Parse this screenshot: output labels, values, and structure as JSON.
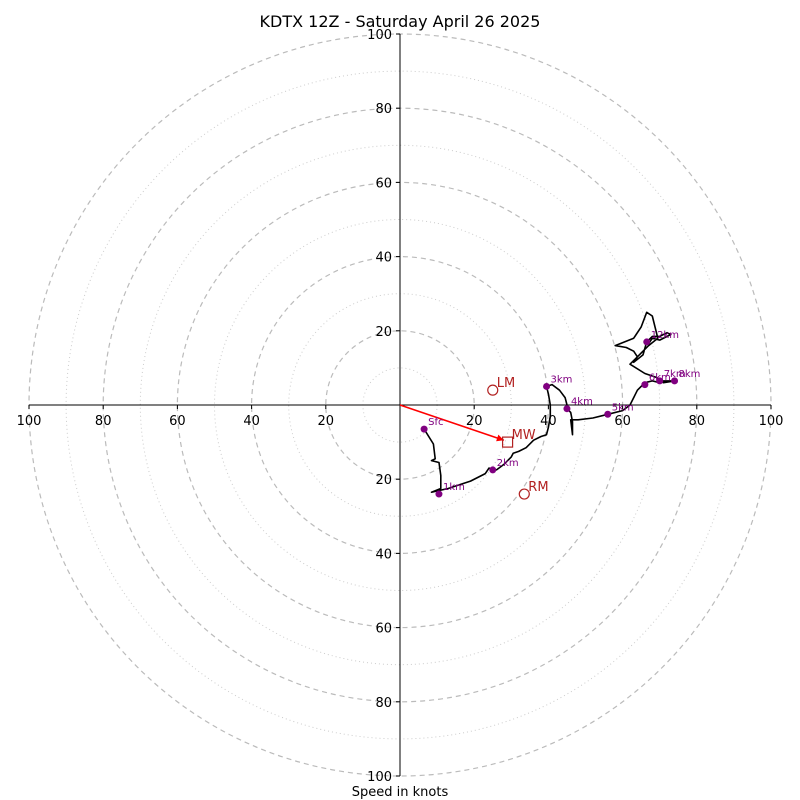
{
  "chart_data": {
    "type": "hodograph",
    "title": "KDTX 12Z - Saturday April 26 2025",
    "xlabel": "Speed in knots",
    "units": "knots",
    "range": [
      -100,
      100
    ],
    "ring_major": [
      20,
      40,
      60,
      80,
      100
    ],
    "ring_minor": [
      10,
      30,
      50,
      70,
      90
    ],
    "tick_labels": {
      "left": [
        "100",
        "80",
        "60",
        "40",
        "20"
      ],
      "right": [
        "20",
        "40",
        "60",
        "80",
        "100"
      ],
      "up": [
        "20",
        "40",
        "60",
        "80",
        "100"
      ],
      "down": [
        "20",
        "40",
        "60",
        "80",
        "100"
      ]
    },
    "trace": [
      [
        6.5,
        -6.5
      ],
      [
        9,
        -10.5
      ],
      [
        9.5,
        -14.5
      ],
      [
        8.5,
        -15
      ],
      [
        10.5,
        -15.5
      ],
      [
        11,
        -19
      ],
      [
        11,
        -22.5
      ],
      [
        8.5,
        -23.5
      ],
      [
        13,
        -22.5
      ],
      [
        16,
        -21.5
      ],
      [
        19,
        -20.5
      ],
      [
        23,
        -18.5
      ],
      [
        24,
        -17
      ],
      [
        26,
        -17.5
      ],
      [
        28,
        -16
      ],
      [
        30,
        -14
      ],
      [
        30.5,
        -13
      ],
      [
        32,
        -12.5
      ],
      [
        34,
        -11.5
      ],
      [
        36,
        -9.5
      ],
      [
        38,
        -8.5
      ],
      [
        39.5,
        -8
      ],
      [
        40,
        -6
      ],
      [
        40.5,
        -3
      ],
      [
        40.5,
        0
      ],
      [
        40,
        3
      ],
      [
        39.5,
        5
      ],
      [
        41,
        5.5
      ],
      [
        43,
        4
      ],
      [
        44.5,
        2
      ],
      [
        45,
        0
      ],
      [
        45,
        -1
      ],
      [
        46,
        -2
      ],
      [
        46.5,
        -4.5
      ],
      [
        46.5,
        -8
      ],
      [
        46,
        -4
      ],
      [
        48,
        -4
      ],
      [
        52,
        -3.5
      ],
      [
        56,
        -2.5
      ],
      [
        60,
        -1.5
      ],
      [
        62,
        0
      ],
      [
        63,
        2
      ],
      [
        64,
        4
      ],
      [
        66,
        6
      ],
      [
        68,
        6.5
      ],
      [
        70,
        6
      ],
      [
        71,
        6.5
      ],
      [
        74,
        6.5
      ],
      [
        71,
        6
      ],
      [
        69,
        7.5
      ],
      [
        66,
        8.5
      ],
      [
        62,
        11
      ],
      [
        65,
        14
      ],
      [
        67,
        16
      ],
      [
        69.5,
        18
      ],
      [
        68,
        24
      ],
      [
        66.5,
        25
      ],
      [
        65,
        21
      ],
      [
        63,
        18
      ],
      [
        58,
        16
      ],
      [
        61,
        15.5
      ],
      [
        63,
        14.5
      ],
      [
        64,
        13
      ],
      [
        63,
        11.5
      ],
      [
        65.5,
        13.5
      ],
      [
        66.5,
        17
      ],
      [
        68,
        18.5
      ],
      [
        70,
        18.5
      ],
      [
        72,
        19.5
      ],
      [
        73,
        19
      ],
      [
        70,
        17.5
      ],
      [
        68,
        18
      ],
      [
        67,
        16.5
      ]
    ],
    "height_markers": [
      {
        "label": "Sfc",
        "u": 6.5,
        "v": -6.5
      },
      {
        "label": "1km",
        "u": 10.5,
        "v": -24
      },
      {
        "label": "2km",
        "u": 25,
        "v": -17.5
      },
      {
        "label": "3km",
        "u": 39.5,
        "v": 5
      },
      {
        "label": "4km",
        "u": 45,
        "v": -1
      },
      {
        "label": "5km",
        "u": 56,
        "v": -2.5
      },
      {
        "label": "6km",
        "u": 66,
        "v": 5.5
      },
      {
        "label": "7km",
        "u": 70,
        "v": 6.5
      },
      {
        "label": "8km",
        "u": 74,
        "v": 6.5
      },
      {
        "label": "12km",
        "u": 66.5,
        "v": 17
      }
    ],
    "storm_motion": [
      {
        "label": "LM",
        "u": 25,
        "v": 4,
        "marker": "circle"
      },
      {
        "label": "RM",
        "u": 33.5,
        "v": -24,
        "marker": "circle"
      },
      {
        "label": "MW",
        "u": 29,
        "v": -10,
        "marker": "square"
      }
    ],
    "shear_vector": {
      "from": [
        0,
        0
      ],
      "to": [
        28,
        -9.5
      ]
    },
    "colors": {
      "trace": "#000000",
      "markers": "#800080",
      "storm_motion": "#b22222",
      "shear_vector": "#ff0000",
      "ring_major": "#bbbbbb",
      "ring_minor": "#cccccc"
    }
  }
}
